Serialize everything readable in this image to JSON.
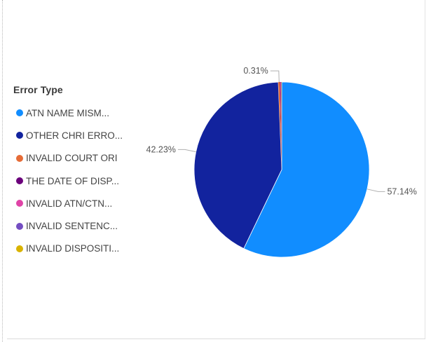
{
  "chart_data": {
    "type": "pie",
    "title": "",
    "legend_title": "Error Type",
    "legend_position": "left",
    "categories": [
      "ATN NAME MISM...",
      "OTHER CHRI ERRO...",
      "INVALID COURT ORI",
      "THE DATE OF DISP...",
      "INVALID ATN/CTN...",
      "INVALID SENTENC...",
      "INVALID DISPOSITI..."
    ],
    "values": [
      57.14,
      42.23,
      0.31,
      0.1,
      0.1,
      0.06,
      0.06
    ],
    "colors": [
      "#118dff",
      "#12239e",
      "#e66c37",
      "#6b007b",
      "#e044a7",
      "#744ec2",
      "#d9b300"
    ],
    "data_labels": [
      {
        "text": "57.14%",
        "category": "ATN NAME MISM..."
      },
      {
        "text": "42.23%",
        "category": "OTHER CHRI ERRO..."
      },
      {
        "text": "0.31%",
        "category": "INVALID COURT ORI"
      }
    ]
  }
}
